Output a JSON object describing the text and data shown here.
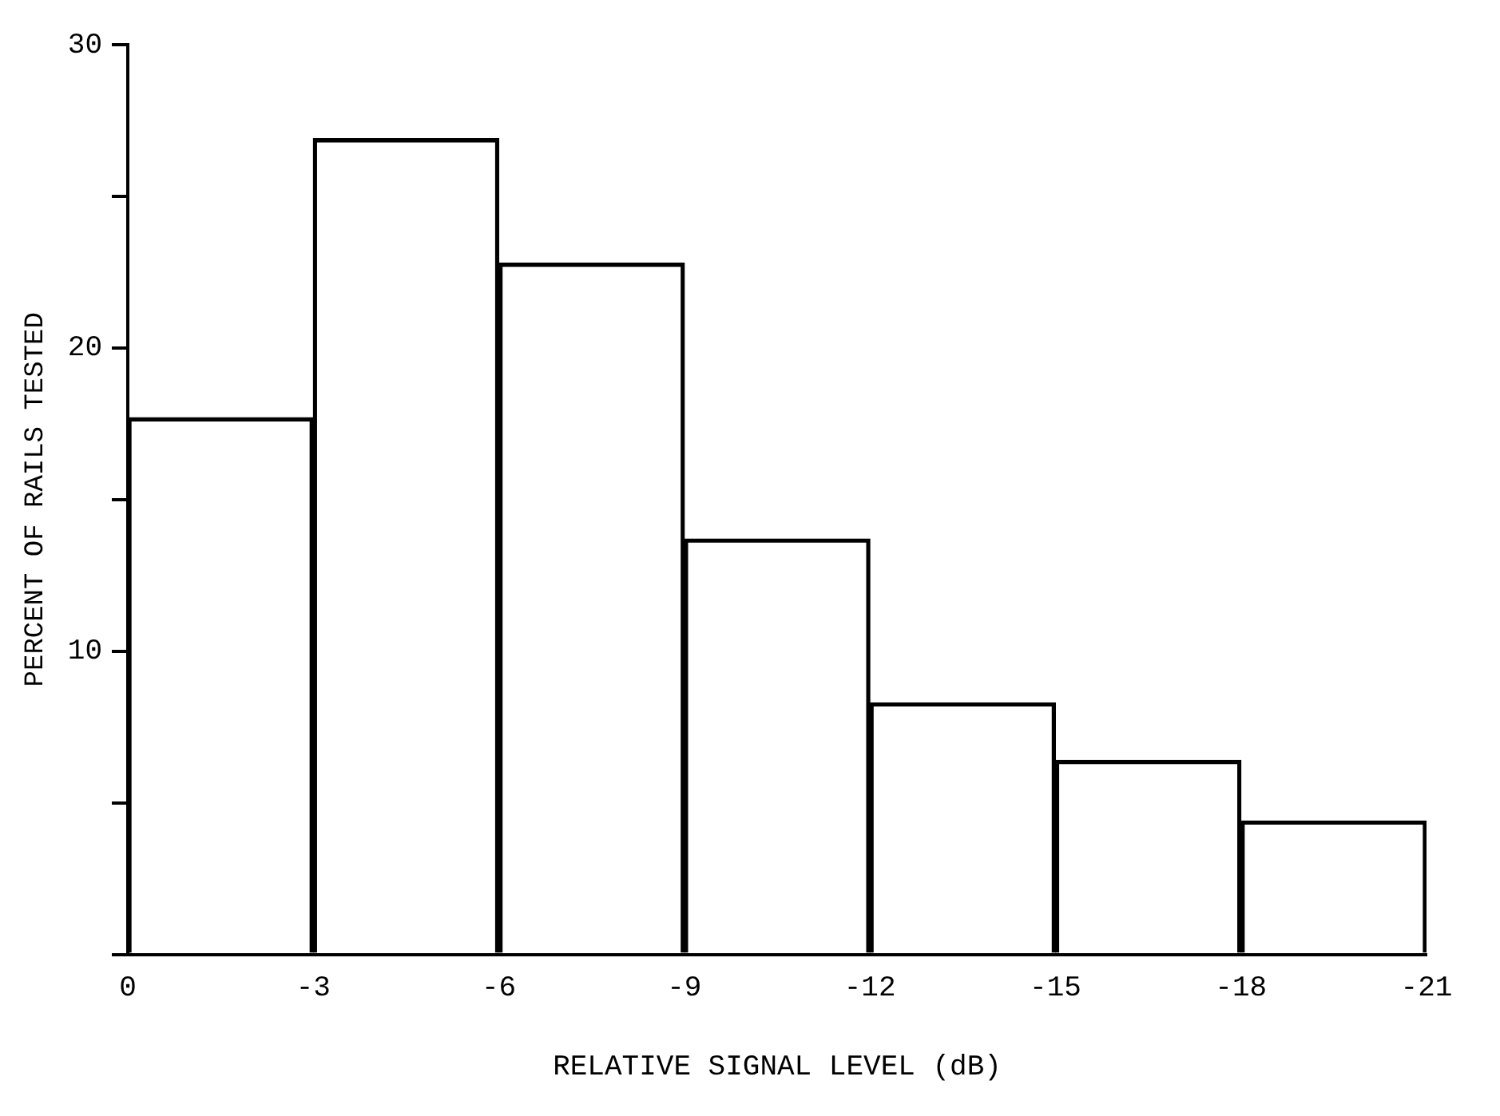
{
  "chart_data": {
    "type": "histogram",
    "xlabel": "RELATIVE SIGNAL LEVEL (dB)",
    "ylabel": "PERCENT OF RAILS TESTED",
    "bins": [
      0,
      -3,
      -6,
      -9,
      -12,
      -15,
      -18,
      -21
    ],
    "values": [
      17.7,
      26.9,
      22.8,
      13.7,
      8.3,
      6.4,
      4.4
    ],
    "color": "#000000",
    "xlim": [
      0,
      -21
    ],
    "xticks": [
      0,
      -3,
      -6,
      -9,
      -12,
      -15,
      -18,
      -21
    ],
    "ylim": [
      0,
      30
    ],
    "yticks": [
      {
        "value": 0,
        "label": null
      },
      {
        "value": 5,
        "label": null
      },
      10,
      {
        "value": 15,
        "label": null
      },
      20,
      {
        "value": 25,
        "label": null
      },
      30
    ],
    "grid": false,
    "legend": false
  }
}
